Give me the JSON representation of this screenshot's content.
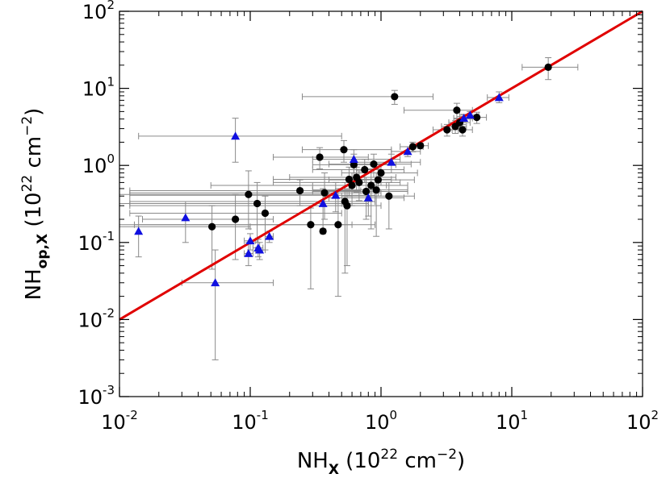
{
  "chart_data": {
    "type": "scatter",
    "xscale": "log",
    "yscale": "log",
    "xlim": [
      0.01,
      100
    ],
    "ylim": [
      0.001,
      100
    ],
    "x_ticks": [
      {
        "base": "10",
        "exp": "-2",
        "value": 0.01
      },
      {
        "base": "10",
        "exp": "-1",
        "value": 0.1
      },
      {
        "base": "10",
        "exp": "0",
        "value": 1
      },
      {
        "base": "10",
        "exp": "1",
        "value": 10
      },
      {
        "base": "10",
        "exp": "2",
        "value": 100
      }
    ],
    "y_ticks": [
      {
        "base": "10",
        "exp": "-3",
        "value": 0.001
      },
      {
        "base": "10",
        "exp": "-2",
        "value": 0.01
      },
      {
        "base": "10",
        "exp": "-1",
        "value": 0.1
      },
      {
        "base": "10",
        "exp": "0",
        "value": 1
      },
      {
        "base": "10",
        "exp": "1",
        "value": 10
      },
      {
        "base": "10",
        "exp": "2",
        "value": 100
      }
    ],
    "xlabel": {
      "main": "NH",
      "sub": "X",
      "rest": " (10",
      "sup1": "22",
      "mid": " cm",
      "sup2": "−2",
      "end": ")"
    },
    "ylabel": {
      "main": "NH",
      "sub": "op,X",
      "rest": " (10",
      "sup1": "22",
      "mid": " cm",
      "sup2": "−2",
      "end": ")"
    },
    "reference_line": {
      "x": [
        0.01,
        100
      ],
      "y": [
        0.01,
        100
      ],
      "color": "#e00000"
    },
    "colors": {
      "circles": "#000000",
      "triangles": "#1010e0",
      "errorbars": "#8a8a8a",
      "line": "#e00000"
    },
    "series": [
      {
        "marker": "circle",
        "points": [
          {
            "x": 0.051,
            "y": 0.16,
            "xerr": [
              0.01,
              0.1
            ],
            "yerr": [
              0.045,
              0.3
            ]
          },
          {
            "x": 0.077,
            "y": 0.2,
            "xerr": [
              0.015,
              0.15
            ],
            "yerr": [
              0.06,
              0.42
            ]
          },
          {
            "x": 0.097,
            "y": 0.42,
            "xerr": [
              0.01,
              0.4
            ],
            "yerr": [
              0.15,
              0.85
            ]
          },
          {
            "x": 0.113,
            "y": 0.32,
            "xerr": [
              0.01,
              0.5
            ],
            "yerr": [
              0.1,
              0.6
            ]
          },
          {
            "x": 0.13,
            "y": 0.24,
            "xerr": [
              0.012,
              0.5
            ],
            "yerr": [
              0.08,
              0.4
            ]
          },
          {
            "x": 0.24,
            "y": 0.47,
            "xerr": [
              0.012,
              0.7
            ],
            "yerr": [
              0.3,
              0.65
            ]
          },
          {
            "x": 0.29,
            "y": 0.17,
            "xerr": [
              0.013,
              0.6
            ],
            "yerr": [
              0.025,
              0.28
            ]
          },
          {
            "x": 0.34,
            "y": 1.28,
            "xerr": [
              0.15,
              0.8
            ],
            "yerr": [
              0.9,
              1.7
            ]
          },
          {
            "x": 0.36,
            "y": 0.14,
            "xerr": [
              0.35,
              0.37
            ],
            "yerr": [
              0.13,
              0.15
            ]
          },
          {
            "x": 0.37,
            "y": 0.44,
            "xerr": [
              0.012,
              1.0
            ],
            "yerr": [
              0.2,
              0.8
            ]
          },
          {
            "x": 0.47,
            "y": 0.17,
            "xerr": [
              0.01,
              0.9
            ],
            "yerr": [
              0.02,
              0.5
            ]
          },
          {
            "x": 0.52,
            "y": 1.6,
            "xerr": [
              0.25,
              1.2
            ],
            "yerr": [
              1.1,
              2.1
            ]
          },
          {
            "x": 0.53,
            "y": 0.34,
            "xerr": [
              0.012,
              0.9
            ],
            "yerr": [
              0.04,
              0.6
            ]
          },
          {
            "x": 0.55,
            "y": 0.3,
            "xerr": [
              0.012,
              1.0
            ],
            "yerr": [
              0.05,
              0.5
            ]
          },
          {
            "x": 0.57,
            "y": 0.66,
            "xerr": [
              0.15,
              1.2
            ],
            "yerr": [
              0.4,
              0.95
            ]
          },
          {
            "x": 0.6,
            "y": 0.55,
            "xerr": [
              0.05,
              1.1
            ],
            "yerr": [
              0.3,
              0.8
            ]
          },
          {
            "x": 0.62,
            "y": 1.02,
            "xerr": [
              0.3,
              1.3
            ],
            "yerr": [
              0.7,
              1.4
            ]
          },
          {
            "x": 0.65,
            "y": 0.7,
            "xerr": [
              0.2,
              1.3
            ],
            "yerr": [
              0.45,
              0.95
            ]
          },
          {
            "x": 0.68,
            "y": 0.6,
            "xerr": [
              0.15,
              1.4
            ],
            "yerr": [
              0.35,
              0.85
            ]
          },
          {
            "x": 0.75,
            "y": 0.88,
            "xerr": [
              0.3,
              1.5
            ],
            "yerr": [
              0.6,
              1.2
            ]
          },
          {
            "x": 0.77,
            "y": 0.46,
            "xerr": [
              0.3,
              1.6
            ],
            "yerr": [
              0.2,
              0.7
            ]
          },
          {
            "x": 0.84,
            "y": 0.55,
            "xerr": [
              0.3,
              1.6
            ],
            "yerr": [
              0.15,
              0.9
            ]
          },
          {
            "x": 0.88,
            "y": 1.04,
            "xerr": [
              0.4,
              1.7
            ],
            "yerr": [
              0.7,
              1.4
            ]
          },
          {
            "x": 0.92,
            "y": 0.48,
            "xerr": [
              0.3,
              1.6
            ],
            "yerr": [
              0.12,
              0.8
            ]
          },
          {
            "x": 0.95,
            "y": 0.65,
            "xerr": [
              0.4,
              1.8
            ],
            "yerr": [
              0.4,
              0.9
            ]
          },
          {
            "x": 1.0,
            "y": 0.8,
            "xerr": [
              0.5,
              1.9
            ],
            "yerr": [
              0.55,
              1.05
            ]
          },
          {
            "x": 1.15,
            "y": 0.4,
            "xerr": [
              0.5,
              1.8
            ],
            "yerr": [
              0.15,
              0.6
            ]
          },
          {
            "x": 1.27,
            "y": 7.8,
            "xerr": [
              0.25,
              2.5
            ],
            "yerr": [
              6.2,
              9.4
            ]
          },
          {
            "x": 1.75,
            "y": 1.75,
            "xerr": [
              1.4,
              2.1
            ],
            "yerr": [
              1.5,
              2.0
            ]
          },
          {
            "x": 2.0,
            "y": 1.8,
            "xerr": [
              1.7,
              2.3
            ],
            "yerr": [
              1.65,
              1.95
            ]
          },
          {
            "x": 3.2,
            "y": 2.9,
            "xerr": [
              2.5,
              3.9
            ],
            "yerr": [
              2.4,
              3.4
            ]
          },
          {
            "x": 3.7,
            "y": 3.2,
            "xerr": [
              2.9,
              4.5
            ],
            "yerr": [
              2.6,
              3.8
            ]
          },
          {
            "x": 3.8,
            "y": 5.2,
            "xerr": [
              1.5,
              5.0
            ],
            "yerr": [
              4.0,
              6.4
            ]
          },
          {
            "x": 4.0,
            "y": 3.6,
            "xerr": [
              3.3,
              4.8
            ],
            "yerr": [
              3.0,
              4.3
            ]
          },
          {
            "x": 4.2,
            "y": 2.9,
            "xerr": [
              3.5,
              5.0
            ],
            "yerr": [
              2.4,
              3.4
            ]
          },
          {
            "x": 5.4,
            "y": 4.2,
            "xerr": [
              4.4,
              6.4
            ],
            "yerr": [
              3.5,
              4.9
            ]
          },
          {
            "x": 19.0,
            "y": 18.8,
            "xerr": [
              12.0,
              32.0
            ],
            "yerr": [
              13.0,
              25.0
            ]
          }
        ]
      },
      {
        "marker": "triangle",
        "points": [
          {
            "x": 0.014,
            "y": 0.14,
            "xerr": [
              0.014,
              0.014
            ],
            "yerr": [
              0.065,
              0.22
            ]
          },
          {
            "x": 0.032,
            "y": 0.21,
            "xerr": [
              0.032,
              0.032
            ],
            "yerr": [
              0.1,
              0.34
            ]
          },
          {
            "x": 0.054,
            "y": 0.03,
            "xerr": [
              0.03,
              0.15
            ],
            "yerr": [
              0.003,
              0.08
            ]
          },
          {
            "x": 0.077,
            "y": 2.4,
            "xerr": [
              0.014,
              0.5
            ],
            "yerr": [
              1.1,
              4.1
            ]
          },
          {
            "x": 0.097,
            "y": 0.072,
            "xerr": [
              0.09,
              0.105
            ],
            "yerr": [
              0.05,
              0.1
            ]
          },
          {
            "x": 0.1,
            "y": 0.105,
            "xerr": [
              0.09,
              0.11
            ],
            "yerr": [
              0.08,
              0.13
            ]
          },
          {
            "x": 0.115,
            "y": 0.085,
            "xerr": [
              0.105,
              0.125
            ],
            "yerr": [
              0.065,
              0.11
            ]
          },
          {
            "x": 0.118,
            "y": 0.08,
            "xerr": [
              0.11,
              0.13
            ],
            "yerr": [
              0.06,
              0.1
            ]
          },
          {
            "x": 0.14,
            "y": 0.12,
            "xerr": [
              0.13,
              0.15
            ],
            "yerr": [
              0.1,
              0.14
            ]
          },
          {
            "x": 0.36,
            "y": 0.32,
            "xerr": [
              0.012,
              0.8
            ],
            "yerr": [
              0.15,
              0.5
            ]
          },
          {
            "x": 0.45,
            "y": 0.41,
            "xerr": [
              0.012,
              0.9
            ],
            "yerr": [
              0.25,
              0.6
            ]
          },
          {
            "x": 0.62,
            "y": 1.2,
            "xerr": [
              0.3,
              1.4
            ],
            "yerr": [
              0.8,
              1.6
            ]
          },
          {
            "x": 0.8,
            "y": 0.38,
            "xerr": [
              0.4,
              1.5
            ],
            "yerr": [
              0.22,
              0.55
            ]
          },
          {
            "x": 1.2,
            "y": 1.1,
            "xerr": [
              0.6,
              2.0
            ],
            "yerr": [
              0.8,
              1.4
            ]
          },
          {
            "x": 1.6,
            "y": 1.52,
            "xerr": [
              1.2,
              2.0
            ],
            "yerr": [
              1.3,
              1.75
            ]
          },
          {
            "x": 4.3,
            "y": 4.1,
            "xerr": [
              3.6,
              5.0
            ],
            "yerr": [
              3.7,
              4.6
            ]
          },
          {
            "x": 4.8,
            "y": 4.5,
            "xerr": [
              4.0,
              5.6
            ],
            "yerr": [
              4.0,
              5.0
            ]
          },
          {
            "x": 8.0,
            "y": 7.6,
            "xerr": [
              6.5,
              9.5
            ],
            "yerr": [
              6.5,
              9.0
            ]
          }
        ]
      }
    ]
  }
}
